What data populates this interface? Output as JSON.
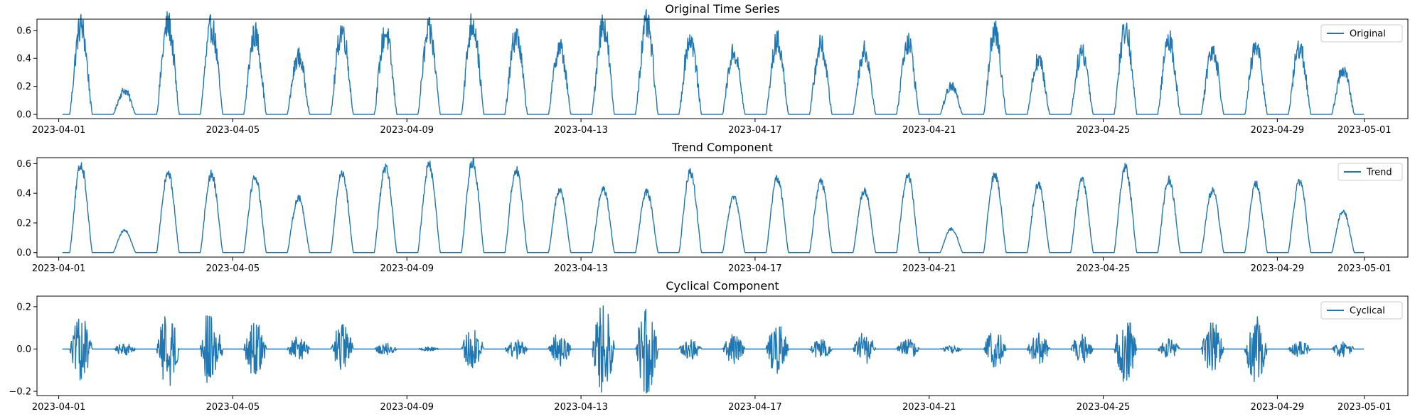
{
  "chart_data": [
    {
      "type": "line",
      "title": "Original Time Series",
      "legend": "top-right",
      "grid": false,
      "xlim": [
        "2023-03-31T12:00",
        "2023-05-02T00:00"
      ],
      "ylim": [
        -0.03,
        0.68
      ],
      "yticks": [
        0.0,
        0.2,
        0.4,
        0.6
      ],
      "ytick_labels": [
        "0.0",
        "0.2",
        "0.4",
        "0.6"
      ],
      "xticks": [
        "2023-04-01",
        "2023-04-05",
        "2023-04-09",
        "2023-04-13",
        "2023-04-17",
        "2023-04-21",
        "2023-04-25",
        "2023-04-29",
        "2023-05-01"
      ],
      "daily_peaks": [
        0.63,
        0.17,
        0.64,
        0.62,
        0.57,
        0.41,
        0.6,
        0.58,
        0.59,
        0.65,
        0.56,
        0.48,
        0.64,
        0.64,
        0.54,
        0.44,
        0.52,
        0.49,
        0.45,
        0.52,
        0.2,
        0.58,
        0.39,
        0.45,
        0.61,
        0.53,
        0.47,
        0.48,
        0.48,
        0.32,
        0.51
      ],
      "series": [
        {
          "name": "Original",
          "color": "#1f77b4"
        }
      ]
    },
    {
      "type": "line",
      "title": "Trend Component",
      "legend": "top-right",
      "grid": false,
      "xlim": [
        "2023-03-31T12:00",
        "2023-05-02T00:00"
      ],
      "ylim": [
        -0.03,
        0.64
      ],
      "yticks": [
        0.0,
        0.2,
        0.4,
        0.6
      ],
      "ytick_labels": [
        "0.0",
        "0.2",
        "0.4",
        "0.6"
      ],
      "xticks": [
        "2023-04-01",
        "2023-04-05",
        "2023-04-09",
        "2023-04-13",
        "2023-04-17",
        "2023-04-21",
        "2023-04-25",
        "2023-04-29",
        "2023-05-01"
      ],
      "daily_peaks": [
        0.59,
        0.15,
        0.54,
        0.53,
        0.51,
        0.37,
        0.54,
        0.57,
        0.59,
        0.61,
        0.56,
        0.42,
        0.43,
        0.41,
        0.54,
        0.37,
        0.5,
        0.48,
        0.42,
        0.52,
        0.16,
        0.53,
        0.46,
        0.49,
        0.57,
        0.49,
        0.42,
        0.46,
        0.48,
        0.28,
        0.44
      ],
      "series": [
        {
          "name": "Trend",
          "color": "#1f77b4"
        }
      ]
    },
    {
      "type": "line",
      "title": "Cyclical Component",
      "legend": "top-right",
      "grid": false,
      "xlim": [
        "2023-03-31T12:00",
        "2023-05-02T00:00"
      ],
      "ylim": [
        -0.22,
        0.25
      ],
      "yticks": [
        -0.2,
        0.0,
        0.2
      ],
      "ytick_labels": [
        "−0.2",
        "0.0",
        "0.2"
      ],
      "xticks": [
        "2023-04-01",
        "2023-04-05",
        "2023-04-09",
        "2023-04-13",
        "2023-04-17",
        "2023-04-21",
        "2023-04-25",
        "2023-04-29",
        "2023-05-01"
      ],
      "daily_amplitude": [
        0.15,
        0.03,
        0.18,
        0.21,
        0.13,
        0.06,
        0.12,
        0.03,
        0.01,
        0.1,
        0.05,
        0.08,
        0.21,
        0.22,
        0.05,
        0.07,
        0.12,
        0.05,
        0.08,
        0.05,
        0.02,
        0.09,
        0.08,
        0.07,
        0.16,
        0.05,
        0.13,
        0.16,
        0.04,
        0.04,
        0.11
      ],
      "series": [
        {
          "name": "Cyclical",
          "color": "#1f77b4"
        }
      ]
    }
  ]
}
